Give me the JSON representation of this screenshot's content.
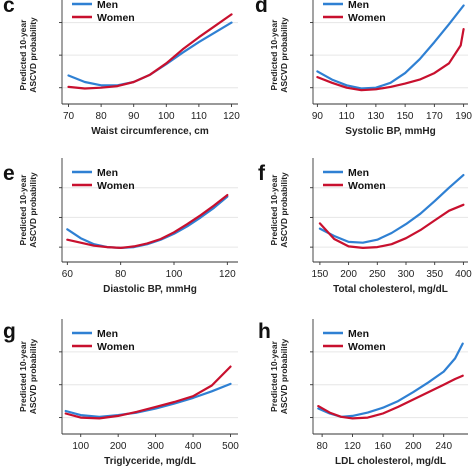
{
  "colors": {
    "men": "#2f80d3",
    "women": "#c8102e"
  },
  "chart_data": [
    {
      "id": "c",
      "letter": "c",
      "type": "line",
      "title": "",
      "xlabel": "Waist circumference, cm",
      "ylabel": [
        "Predicted 10-year",
        "ASCVD probability"
      ],
      "xlim": [
        68,
        122
      ],
      "ylim": [
        0.02,
        0.16
      ],
      "xticks": [
        70,
        80,
        90,
        100,
        110,
        120
      ],
      "yticks": [
        0.04,
        0.08,
        0.12
      ],
      "ytick_labels": [
        "",
        "",
        ""
      ],
      "grid": true,
      "legend": "top-left",
      "series": [
        {
          "name": "Men",
          "color": "#2f80d3",
          "x": [
            70,
            75,
            80,
            85,
            90,
            95,
            100,
            105,
            110,
            115,
            120
          ],
          "y": [
            0.055,
            0.047,
            0.043,
            0.043,
            0.047,
            0.056,
            0.069,
            0.083,
            0.096,
            0.108,
            0.12
          ]
        },
        {
          "name": "Women",
          "color": "#c8102e",
          "x": [
            70,
            75,
            80,
            85,
            90,
            95,
            100,
            105,
            110,
            115,
            120
          ],
          "y": [
            0.041,
            0.039,
            0.04,
            0.042,
            0.047,
            0.056,
            0.07,
            0.087,
            0.102,
            0.116,
            0.13
          ]
        }
      ]
    },
    {
      "id": "d",
      "letter": "d",
      "type": "line",
      "title": "",
      "xlabel": "Systolic BP, mmHg",
      "ylabel": [
        "Predicted 10-year",
        "ASCVD probability"
      ],
      "xlim": [
        87,
        193
      ],
      "ylim": [
        0.02,
        0.16
      ],
      "xticks": [
        90,
        110,
        130,
        150,
        170,
        190
      ],
      "yticks": [
        0.04,
        0.08,
        0.12
      ],
      "ytick_labels": [
        "",
        "",
        ""
      ],
      "grid": true,
      "legend": "top-left",
      "series": [
        {
          "name": "Men",
          "color": "#2f80d3",
          "x": [
            90,
            100,
            110,
            120,
            130,
            140,
            150,
            160,
            170,
            180,
            190
          ],
          "y": [
            0.06,
            0.05,
            0.043,
            0.039,
            0.04,
            0.046,
            0.058,
            0.075,
            0.096,
            0.118,
            0.141
          ]
        },
        {
          "name": "Women",
          "color": "#c8102e",
          "x": [
            90,
            100,
            110,
            120,
            130,
            140,
            150,
            160,
            170,
            180,
            188,
            190
          ],
          "y": [
            0.053,
            0.046,
            0.04,
            0.037,
            0.038,
            0.041,
            0.045,
            0.05,
            0.058,
            0.07,
            0.092,
            0.112
          ]
        }
      ]
    },
    {
      "id": "e",
      "letter": "e",
      "type": "line",
      "title": "",
      "xlabel": "Diastolic BP, mmHg",
      "ylabel": [
        "Predicted 10-year",
        "ASCVD probability"
      ],
      "xlim": [
        58,
        124
      ],
      "ylim": [
        0.02,
        0.16
      ],
      "xticks": [
        60,
        80,
        100,
        120
      ],
      "yticks": [
        0.04,
        0.08,
        0.12
      ],
      "ytick_labels": [
        "",
        "",
        ""
      ],
      "grid": true,
      "legend": "top-left",
      "series": [
        {
          "name": "Men",
          "color": "#2f80d3",
          "x": [
            60,
            65,
            70,
            75,
            80,
            85,
            90,
            95,
            100,
            105,
            110,
            115,
            120
          ],
          "y": [
            0.064,
            0.052,
            0.044,
            0.04,
            0.039,
            0.04,
            0.044,
            0.05,
            0.058,
            0.068,
            0.08,
            0.093,
            0.108
          ]
        },
        {
          "name": "Women",
          "color": "#c8102e",
          "x": [
            60,
            65,
            70,
            75,
            80,
            85,
            90,
            95,
            100,
            105,
            110,
            115,
            120
          ],
          "y": [
            0.05,
            0.046,
            0.042,
            0.04,
            0.039,
            0.041,
            0.045,
            0.051,
            0.06,
            0.071,
            0.083,
            0.096,
            0.11
          ]
        }
      ]
    },
    {
      "id": "f",
      "letter": "f",
      "type": "line",
      "title": "",
      "xlabel": "Total cholesterol, mg/dL",
      "ylabel": [
        "Predicted 10-year",
        "ASCVD probability"
      ],
      "xlim": [
        138,
        408
      ],
      "ylim": [
        0.02,
        0.16
      ],
      "xticks": [
        150,
        200,
        250,
        300,
        350,
        400
      ],
      "yticks": [
        0.04,
        0.08,
        0.12
      ],
      "ytick_labels": [
        "",
        "",
        ""
      ],
      "grid": true,
      "legend": "top-left",
      "series": [
        {
          "name": "Men",
          "color": "#2f80d3",
          "x": [
            150,
            175,
            200,
            225,
            250,
            275,
            300,
            325,
            350,
            375,
            400
          ],
          "y": [
            0.065,
            0.055,
            0.047,
            0.046,
            0.05,
            0.059,
            0.071,
            0.085,
            0.102,
            0.12,
            0.137
          ]
        },
        {
          "name": "Women",
          "color": "#c8102e",
          "x": [
            150,
            175,
            200,
            225,
            250,
            275,
            300,
            325,
            350,
            375,
            400
          ],
          "y": [
            0.072,
            0.051,
            0.041,
            0.039,
            0.04,
            0.044,
            0.052,
            0.063,
            0.076,
            0.089,
            0.097
          ]
        }
      ]
    },
    {
      "id": "g",
      "letter": "g",
      "type": "line",
      "title": "",
      "xlabel": "Triglyceride, mg/dL",
      "ylabel": [
        "Predicted 10-year",
        "ASCVD probability"
      ],
      "xlim": [
        50,
        520
      ],
      "ylim": [
        0.02,
        0.16
      ],
      "xticks": [
        100,
        200,
        300,
        400,
        500
      ],
      "yticks": [
        0.04,
        0.08,
        0.12
      ],
      "ytick_labels": [
        "",
        "",
        ""
      ],
      "grid": true,
      "legend": "top-left",
      "series": [
        {
          "name": "Men",
          "color": "#2f80d3",
          "x": [
            60,
            100,
            150,
            200,
            250,
            300,
            350,
            400,
            450,
            500
          ],
          "y": [
            0.048,
            0.043,
            0.041,
            0.043,
            0.046,
            0.051,
            0.057,
            0.064,
            0.072,
            0.081
          ]
        },
        {
          "name": "Women",
          "color": "#c8102e",
          "x": [
            60,
            100,
            150,
            200,
            250,
            300,
            350,
            400,
            450,
            500
          ],
          "y": [
            0.045,
            0.04,
            0.039,
            0.042,
            0.047,
            0.053,
            0.059,
            0.066,
            0.079,
            0.102
          ]
        }
      ]
    },
    {
      "id": "h",
      "letter": "h",
      "type": "line",
      "title": "",
      "xlabel": "LDL cholesterol, mg/dL",
      "ylabel": [
        "Predicted 10-year",
        "ASCVD probability"
      ],
      "xlim": [
        68,
        272
      ],
      "ylim": [
        0.02,
        0.16
      ],
      "xticks": [
        80,
        120,
        160,
        200,
        240
      ],
      "yticks": [
        0.04,
        0.08,
        0.12
      ],
      "ytick_labels": [
        "",
        "",
        ""
      ],
      "grid": true,
      "legend": "top-left",
      "series": [
        {
          "name": "Men",
          "color": "#2f80d3",
          "x": [
            75,
            90,
            105,
            120,
            140,
            160,
            180,
            200,
            220,
            240,
            255,
            265
          ],
          "y": [
            0.051,
            0.045,
            0.041,
            0.042,
            0.046,
            0.052,
            0.06,
            0.071,
            0.083,
            0.096,
            0.112,
            0.13
          ]
        },
        {
          "name": "Women",
          "color": "#c8102e",
          "x": [
            75,
            90,
            105,
            120,
            140,
            160,
            180,
            200,
            220,
            240,
            255,
            265
          ],
          "y": [
            0.054,
            0.046,
            0.041,
            0.039,
            0.04,
            0.045,
            0.053,
            0.062,
            0.071,
            0.08,
            0.087,
            0.091
          ]
        }
      ]
    }
  ]
}
